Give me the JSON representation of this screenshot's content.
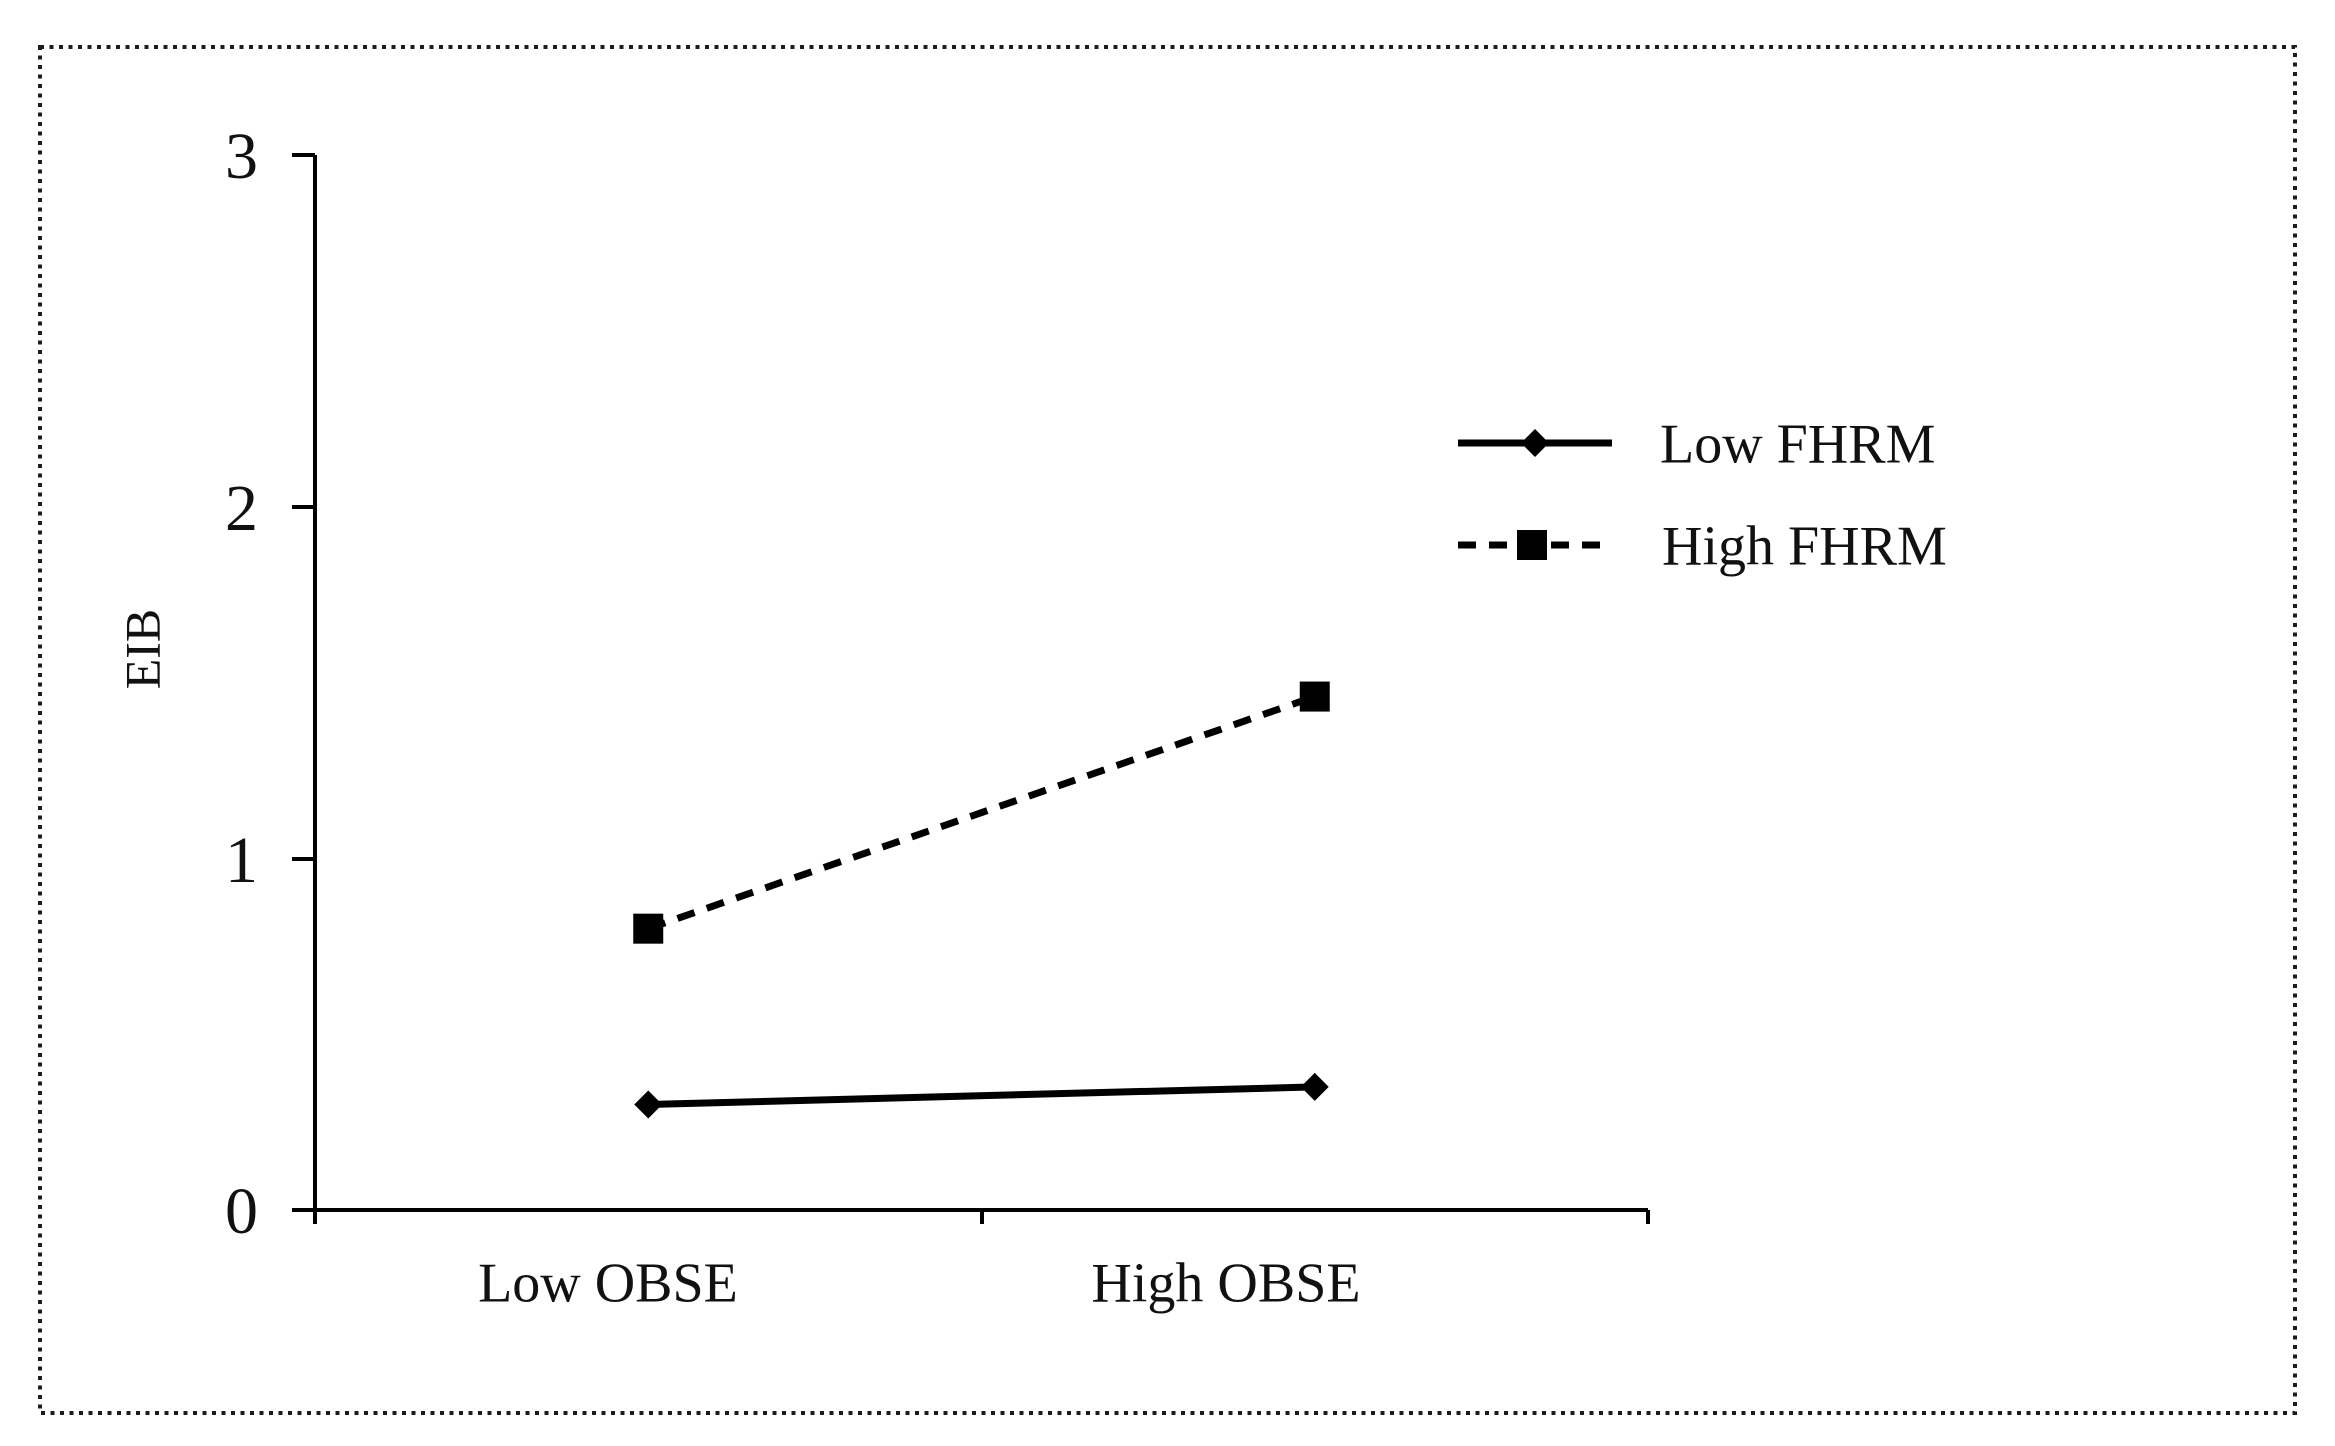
{
  "chart_data": {
    "type": "line",
    "categories": [
      "Low OBSE",
      "High OBSE"
    ],
    "series": [
      {
        "name": "Low FHRM",
        "values": [
          0.3,
          0.35
        ],
        "line_style": "solid",
        "marker": "diamond",
        "color": "#000000"
      },
      {
        "name": "High FHRM",
        "values": [
          0.8,
          1.46
        ],
        "line_style": "dashed",
        "marker": "square",
        "color": "#000000"
      }
    ],
    "xlabel": "",
    "ylabel": "EIB",
    "yticks": [
      0,
      1,
      2,
      3
    ],
    "ylim": [
      0,
      3
    ],
    "grid": false,
    "legend_position": "upper-right",
    "background": "#ffffff",
    "axis_color": "#000000"
  }
}
